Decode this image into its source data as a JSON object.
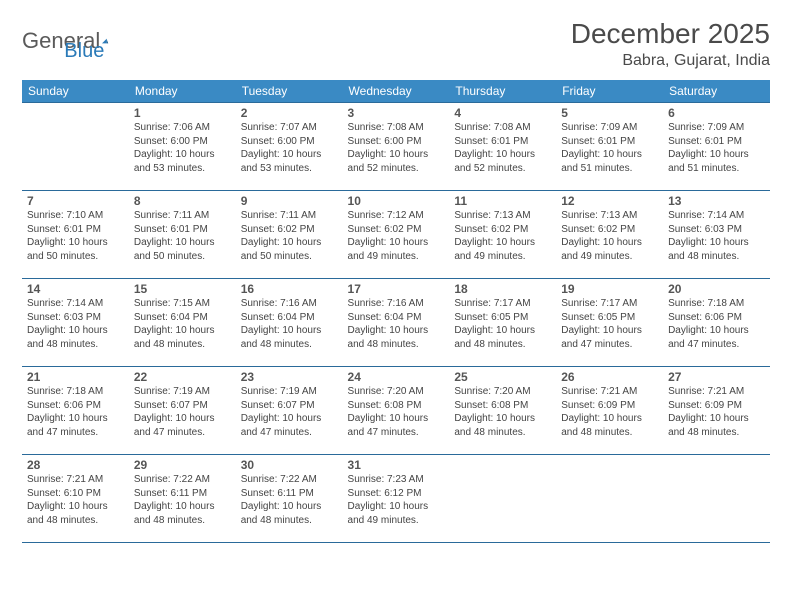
{
  "logo": {
    "word1": "General",
    "word2": "Blue"
  },
  "title": "December 2025",
  "location": "Babra, Gujarat, India",
  "colors": {
    "header_bg": "#3a8ac4",
    "header_text": "#ffffff",
    "border": "#2a6a9a",
    "logo_gray": "#5a5a5a",
    "logo_blue": "#2a7ab8",
    "daynum": "#555555",
    "body_text": "#444444",
    "title_text": "#4a4a4a"
  },
  "dow": [
    "Sunday",
    "Monday",
    "Tuesday",
    "Wednesday",
    "Thursday",
    "Friday",
    "Saturday"
  ],
  "weeks": [
    [
      null,
      {
        "n": "1",
        "sr": "7:06 AM",
        "ss": "6:00 PM",
        "dl": "10 hours and 53 minutes."
      },
      {
        "n": "2",
        "sr": "7:07 AM",
        "ss": "6:00 PM",
        "dl": "10 hours and 53 minutes."
      },
      {
        "n": "3",
        "sr": "7:08 AM",
        "ss": "6:00 PM",
        "dl": "10 hours and 52 minutes."
      },
      {
        "n": "4",
        "sr": "7:08 AM",
        "ss": "6:01 PM",
        "dl": "10 hours and 52 minutes."
      },
      {
        "n": "5",
        "sr": "7:09 AM",
        "ss": "6:01 PM",
        "dl": "10 hours and 51 minutes."
      },
      {
        "n": "6",
        "sr": "7:09 AM",
        "ss": "6:01 PM",
        "dl": "10 hours and 51 minutes."
      }
    ],
    [
      {
        "n": "7",
        "sr": "7:10 AM",
        "ss": "6:01 PM",
        "dl": "10 hours and 50 minutes."
      },
      {
        "n": "8",
        "sr": "7:11 AM",
        "ss": "6:01 PM",
        "dl": "10 hours and 50 minutes."
      },
      {
        "n": "9",
        "sr": "7:11 AM",
        "ss": "6:02 PM",
        "dl": "10 hours and 50 minutes."
      },
      {
        "n": "10",
        "sr": "7:12 AM",
        "ss": "6:02 PM",
        "dl": "10 hours and 49 minutes."
      },
      {
        "n": "11",
        "sr": "7:13 AM",
        "ss": "6:02 PM",
        "dl": "10 hours and 49 minutes."
      },
      {
        "n": "12",
        "sr": "7:13 AM",
        "ss": "6:02 PM",
        "dl": "10 hours and 49 minutes."
      },
      {
        "n": "13",
        "sr": "7:14 AM",
        "ss": "6:03 PM",
        "dl": "10 hours and 48 minutes."
      }
    ],
    [
      {
        "n": "14",
        "sr": "7:14 AM",
        "ss": "6:03 PM",
        "dl": "10 hours and 48 minutes."
      },
      {
        "n": "15",
        "sr": "7:15 AM",
        "ss": "6:04 PM",
        "dl": "10 hours and 48 minutes."
      },
      {
        "n": "16",
        "sr": "7:16 AM",
        "ss": "6:04 PM",
        "dl": "10 hours and 48 minutes."
      },
      {
        "n": "17",
        "sr": "7:16 AM",
        "ss": "6:04 PM",
        "dl": "10 hours and 48 minutes."
      },
      {
        "n": "18",
        "sr": "7:17 AM",
        "ss": "6:05 PM",
        "dl": "10 hours and 48 minutes."
      },
      {
        "n": "19",
        "sr": "7:17 AM",
        "ss": "6:05 PM",
        "dl": "10 hours and 47 minutes."
      },
      {
        "n": "20",
        "sr": "7:18 AM",
        "ss": "6:06 PM",
        "dl": "10 hours and 47 minutes."
      }
    ],
    [
      {
        "n": "21",
        "sr": "7:18 AM",
        "ss": "6:06 PM",
        "dl": "10 hours and 47 minutes."
      },
      {
        "n": "22",
        "sr": "7:19 AM",
        "ss": "6:07 PM",
        "dl": "10 hours and 47 minutes."
      },
      {
        "n": "23",
        "sr": "7:19 AM",
        "ss": "6:07 PM",
        "dl": "10 hours and 47 minutes."
      },
      {
        "n": "24",
        "sr": "7:20 AM",
        "ss": "6:08 PM",
        "dl": "10 hours and 47 minutes."
      },
      {
        "n": "25",
        "sr": "7:20 AM",
        "ss": "6:08 PM",
        "dl": "10 hours and 48 minutes."
      },
      {
        "n": "26",
        "sr": "7:21 AM",
        "ss": "6:09 PM",
        "dl": "10 hours and 48 minutes."
      },
      {
        "n": "27",
        "sr": "7:21 AM",
        "ss": "6:09 PM",
        "dl": "10 hours and 48 minutes."
      }
    ],
    [
      {
        "n": "28",
        "sr": "7:21 AM",
        "ss": "6:10 PM",
        "dl": "10 hours and 48 minutes."
      },
      {
        "n": "29",
        "sr": "7:22 AM",
        "ss": "6:11 PM",
        "dl": "10 hours and 48 minutes."
      },
      {
        "n": "30",
        "sr": "7:22 AM",
        "ss": "6:11 PM",
        "dl": "10 hours and 48 minutes."
      },
      {
        "n": "31",
        "sr": "7:23 AM",
        "ss": "6:12 PM",
        "dl": "10 hours and 49 minutes."
      },
      null,
      null,
      null
    ]
  ],
  "labels": {
    "sunrise": "Sunrise:",
    "sunset": "Sunset:",
    "daylight": "Daylight:"
  }
}
